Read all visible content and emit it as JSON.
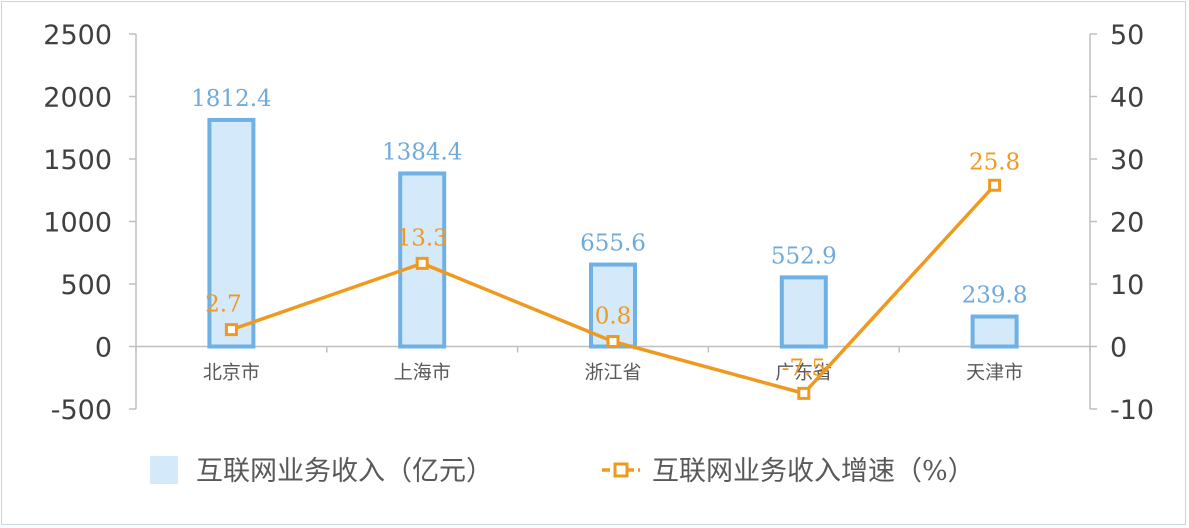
{
  "chart_data": {
    "type": "bar",
    "categories": [
      "北京市",
      "上海市",
      "浙江省",
      "广东省",
      "天津市"
    ],
    "series": [
      {
        "name": "互联网业务收入（亿元）",
        "type": "bar",
        "axis": "left",
        "values": [
          1812.4,
          1384.4,
          655.6,
          552.9,
          239.8
        ],
        "labels": [
          "1812.4",
          "1384.4",
          "655.6",
          "552.9",
          "239.8"
        ],
        "color": "#d4e9f9",
        "stroke": "#6fb1e4"
      },
      {
        "name": "互联网业务收入增速（%）",
        "type": "line",
        "axis": "right",
        "values": [
          2.7,
          13.3,
          0.8,
          -7.5,
          25.8
        ],
        "labels": [
          "2.7",
          "13.3",
          "0.8",
          "-7.5",
          "25.8"
        ],
        "color": "#ef9a1f"
      }
    ],
    "y_left": {
      "min": -500,
      "max": 2500,
      "ticks": [
        "2500",
        "2000",
        "1500",
        "1000",
        "500",
        "0",
        "-500"
      ]
    },
    "y_right": {
      "min": -10,
      "max": 50,
      "ticks": [
        "50",
        "40",
        "30",
        "20",
        "10",
        "0",
        "-10"
      ]
    },
    "legend": {
      "position": "bottom",
      "items": [
        {
          "label": "互联网业务收入（亿元）",
          "icon": "bar-swatch-icon"
        },
        {
          "label": "互联网业务收入增速（%）",
          "icon": "line-marker-icon"
        }
      ]
    },
    "grid": false
  }
}
